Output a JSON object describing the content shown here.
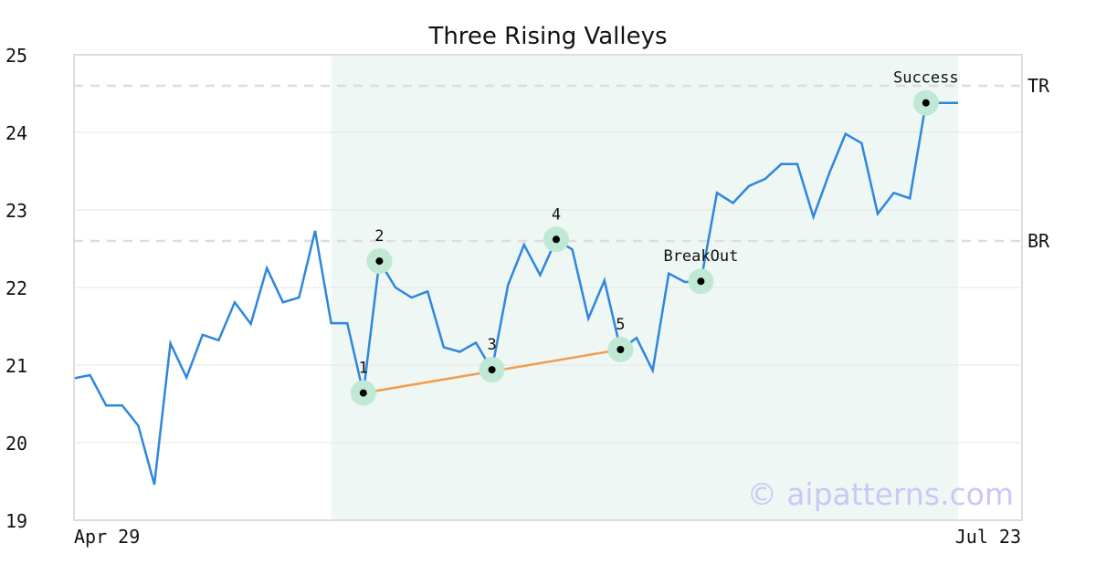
{
  "chart_data": {
    "type": "line",
    "title": "Three Rising Valleys",
    "xlabel": "",
    "ylabel": "",
    "ylim": [
      19,
      25
    ],
    "yticks": [
      19,
      20,
      21,
      22,
      23,
      24,
      25
    ],
    "x_tick_labels": {
      "start": "Apr 29",
      "end": "Jul 23"
    },
    "grid": "horizontal",
    "colors": {
      "price_line": "#2e86de",
      "trend_line": "#f39c4a",
      "marker_halo": "#bfe9d4",
      "marker_dot": "#000000",
      "pattern_region": "#eef7f3",
      "reference_line": "#dddddd",
      "watermark": "#c9c8f7",
      "frame": "#dddddd"
    },
    "series": [
      {
        "values": [
          20.83,
          20.87,
          20.48,
          20.48,
          20.22,
          19.46,
          21.28,
          20.84,
          21.39,
          21.32,
          21.81,
          21.53,
          22.25,
          21.81,
          21.87,
          22.73,
          21.54,
          21.54,
          20.64,
          22.34,
          22.0,
          21.87,
          21.95,
          21.23,
          21.17,
          21.29,
          20.94,
          22.03,
          22.55,
          22.16,
          22.62,
          22.49,
          21.6,
          22.09,
          21.2,
          21.35,
          20.93,
          22.18,
          22.07,
          22.08,
          23.22,
          23.09,
          23.31,
          23.4,
          23.59,
          23.59,
          22.91,
          23.48,
          23.98,
          23.86,
          22.95,
          23.22,
          23.15,
          24.38,
          24.38,
          24.38
        ]
      }
    ],
    "pattern_region": {
      "start_index": 16,
      "end_index": 55
    },
    "reference_lines": [
      {
        "label": "TR",
        "value": 24.6
      },
      {
        "label": "BR",
        "value": 22.6
      }
    ],
    "trend_line": {
      "from_index": 18,
      "to_index": 34
    },
    "annotations": [
      {
        "label": "1",
        "index": 18,
        "position": "above"
      },
      {
        "label": "2",
        "index": 19,
        "position": "above"
      },
      {
        "label": "3",
        "index": 26,
        "position": "above"
      },
      {
        "label": "4",
        "index": 30,
        "position": "above"
      },
      {
        "label": "5",
        "index": 34,
        "position": "above"
      },
      {
        "label": "BreakOut",
        "index": 39,
        "position": "above"
      },
      {
        "label": "Success",
        "index": 53,
        "position": "above"
      }
    ],
    "watermark": "© aipatterns.com"
  }
}
